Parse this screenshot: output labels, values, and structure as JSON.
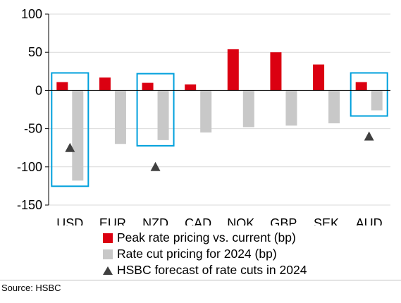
{
  "chart_data": {
    "type": "bar",
    "categories": [
      "USD",
      "EUR",
      "NZD",
      "CAD",
      "NOK",
      "GBP",
      "SEK",
      "AUD"
    ],
    "series": [
      {
        "name": "Peak rate pricing vs. current (bp)",
        "kind": "bar",
        "color": "#db0011",
        "values": [
          11,
          17,
          10,
          8,
          54,
          50,
          34,
          11
        ]
      },
      {
        "name": "Rate cut pricing for 2024 (bp)",
        "kind": "bar",
        "color": "#c8c8c8",
        "values": [
          -118,
          -70,
          -65,
          -55,
          -48,
          -46,
          -43,
          -26
        ]
      },
      {
        "name": "HSBC forecast of rate cuts in 2024",
        "kind": "marker",
        "color": "#404040",
        "values": [
          -75,
          null,
          -100,
          null,
          null,
          null,
          null,
          -60
        ]
      }
    ],
    "highlighted_categories": [
      "USD",
      "NZD",
      "AUD"
    ],
    "highlight_color": "#00a0dc",
    "y_ticks": [
      100,
      50,
      0,
      -50,
      -100,
      -150
    ],
    "ylim": [
      -150,
      100
    ],
    "grid": true,
    "legend_position": "bottom",
    "title": "",
    "xlabel": "",
    "ylabel": ""
  },
  "source": "Source: HSBC"
}
